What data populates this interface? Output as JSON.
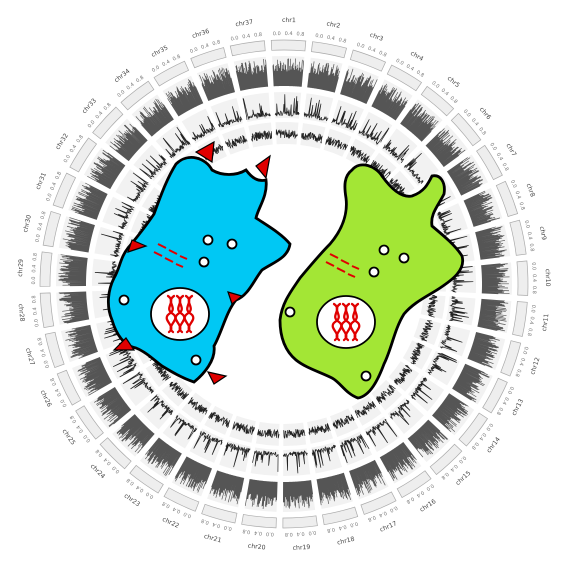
{
  "chromosomes": [
    {
      "label": "chr1"
    },
    {
      "label": "chr2"
    },
    {
      "label": "chr3"
    },
    {
      "label": "chr4"
    },
    {
      "label": "chr5"
    },
    {
      "label": "chr6"
    },
    {
      "label": "chr7"
    },
    {
      "label": "chr8"
    },
    {
      "label": "chr9"
    },
    {
      "label": "chr10"
    },
    {
      "label": "chr11"
    },
    {
      "label": "chr12"
    },
    {
      "label": "chr13"
    },
    {
      "label": "chr14"
    },
    {
      "label": "chr15"
    },
    {
      "label": "chr16"
    },
    {
      "label": "chr17"
    },
    {
      "label": "chr18"
    },
    {
      "label": "chr19"
    },
    {
      "label": "chr20"
    },
    {
      "label": "chr21"
    },
    {
      "label": "chr22"
    },
    {
      "label": "chr23"
    },
    {
      "label": "chr24"
    },
    {
      "label": "chr25"
    },
    {
      "label": "chr26"
    },
    {
      "label": "chr27"
    },
    {
      "label": "chr28"
    },
    {
      "label": "chr29"
    },
    {
      "label": "chr30"
    },
    {
      "label": "chr31"
    },
    {
      "label": "chr32"
    },
    {
      "label": "chr33"
    },
    {
      "label": "chr34"
    },
    {
      "label": "chr35"
    },
    {
      "label": "chr36"
    },
    {
      "label": "chr37"
    }
  ],
  "tick_labels": [
    "0.0",
    "0.4",
    "0.8"
  ],
  "tracks": [
    "ideogram",
    "density-histogram",
    "signal-line-1",
    "signal-line-2"
  ],
  "colors": {
    "ideogram_fill": "#eeeeee",
    "ideogram_stroke": "#aaaaaa",
    "track_background": "#f2f2f2",
    "histogram": "#555555",
    "signal": "#222222",
    "label": "#444444",
    "cell_blue": "#00c8f4",
    "cell_green": "#a3e635",
    "spike": "#e00000",
    "dna": "#e00000",
    "outline": "#000000"
  },
  "icons": {
    "left_cell": "spiked-cell-icon",
    "right_cell": "smooth-cell-icon",
    "nucleus": "dna-nucleus-icon",
    "fragments": "dna-fragment-icon"
  }
}
